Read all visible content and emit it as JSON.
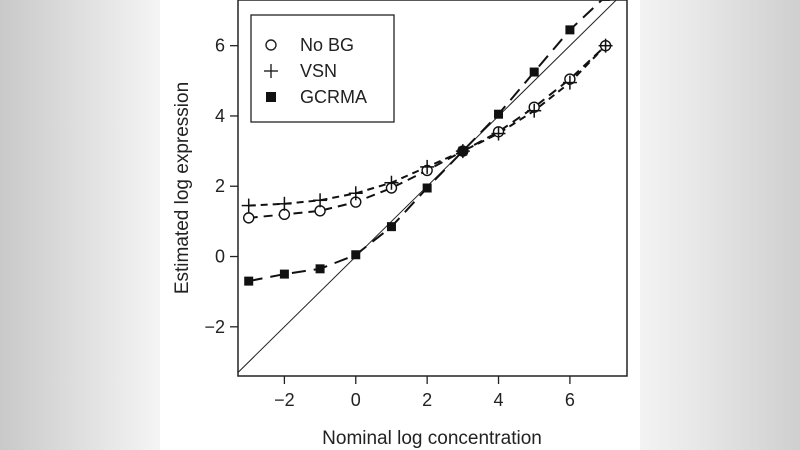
{
  "chart_data": {
    "type": "scatter",
    "title": "",
    "xlabel": "Nominal log concentration",
    "ylabel": "Estimated log expression",
    "xlim": [
      -3.3,
      7.6
    ],
    "ylim": [
      -3.4,
      7.3
    ],
    "xticks": [
      -2,
      0,
      2,
      4,
      6
    ],
    "yticks": [
      -2,
      0,
      2,
      4,
      6
    ],
    "x_tick_labels": [
      "−2",
      "0",
      "2",
      "4",
      "6"
    ],
    "y_tick_labels": [
      "−2",
      "0",
      "2",
      "4",
      "6"
    ],
    "reference_line": "identity (y = x)",
    "legend_position": "top-left",
    "grid": false,
    "x": [
      -3,
      -2,
      -1,
      0,
      1,
      2,
      3,
      4,
      5,
      6,
      7
    ],
    "series": [
      {
        "name": "No BG",
        "marker": "circle-open",
        "line_style": "dashed",
        "values": [
          1.1,
          1.2,
          1.3,
          1.55,
          1.95,
          2.45,
          3.0,
          3.55,
          4.25,
          5.05,
          6.0
        ]
      },
      {
        "name": "VSN",
        "marker": "plus",
        "line_style": "dashed",
        "values": [
          1.45,
          1.5,
          1.6,
          1.8,
          2.1,
          2.55,
          3.0,
          3.5,
          4.15,
          4.95,
          6.0
        ]
      },
      {
        "name": "GCRMA",
        "marker": "square-filled",
        "line_style": "dashed",
        "values": [
          -0.7,
          -0.5,
          -0.35,
          0.05,
          0.85,
          1.95,
          3.0,
          4.05,
          5.25,
          6.45,
          7.4
        ]
      }
    ]
  }
}
